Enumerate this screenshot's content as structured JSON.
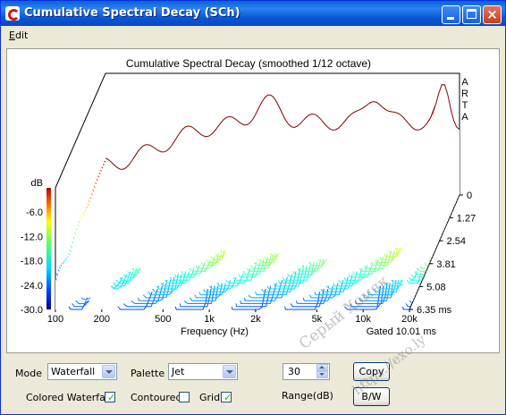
{
  "window": {
    "title": "Cumulative Spectral Decay  (SCh)"
  },
  "menu": {
    "edit_label": "Edit"
  },
  "chart_data": {
    "type": "waterfall",
    "title": "Cumulative Spectral Decay (smoothed 1/12 octave)",
    "side_label": [
      "A",
      "R",
      "T",
      "A"
    ],
    "xlabel": "Frequency (Hz)",
    "x_scale": "log",
    "x_ticks": [
      "100",
      "200",
      "500",
      "1k",
      "2k",
      "5k",
      "10k",
      "20k"
    ],
    "x_tick_values": [
      100,
      200,
      500,
      1000,
      2000,
      5000,
      10000,
      20000
    ],
    "y_unit": "dB",
    "y_ticks": [
      "-6.0",
      "-12.0",
      "-18.0",
      "-24.0",
      "-30.0"
    ],
    "y_tick_values": [
      -6,
      -12,
      -18,
      -24,
      -30
    ],
    "ylim": [
      -30,
      0
    ],
    "z_ticks": [
      "0",
      "1.27",
      "2.54",
      "3.81",
      "5.08",
      "6.35 ms"
    ],
    "z_tick_values": [
      0,
      1.27,
      2.54,
      3.81,
      5.08,
      6.35
    ],
    "gate_label": "Gated 10.01 ms",
    "palette": "Jet",
    "colors": {
      "red": "#d00000",
      "yellow": "#e8e800",
      "cyan": "#00d8d8",
      "blue": "#0000c0"
    }
  },
  "controls": {
    "mode_label": "Mode",
    "mode_value": "Waterfall",
    "palette_label": "Palette",
    "palette_value": "Jet",
    "range_value": "30",
    "range_label": "Range(dB)",
    "copy_label": "Copy",
    "bw_label": "B/W",
    "colored_waterfall_label": "Colored Waterfall",
    "colored_waterfall_checked": true,
    "contoured_label": "Contoured",
    "contoured_checked": false,
    "grid_label": "Grid",
    "grid_checked": true
  },
  "watermark": {
    "line1": "Серый Хомяк",
    "line2": "https://exo.ly"
  }
}
